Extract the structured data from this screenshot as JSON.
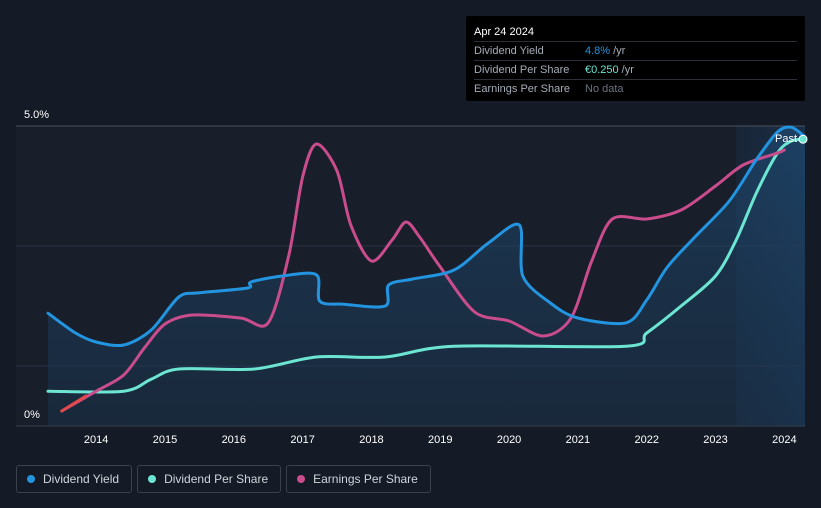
{
  "tooltip": {
    "date": "Apr 24 2024",
    "rows": [
      {
        "label": "Dividend Yield",
        "value": "4.8%",
        "unit": "/yr",
        "color": "#2394df"
      },
      {
        "label": "Dividend Per Share",
        "value": "€0.250",
        "unit": "/yr",
        "color": "#6ce5d2"
      },
      {
        "label": "Earnings Per Share",
        "value": "No data",
        "unit": "",
        "color": "#6b7380"
      }
    ]
  },
  "legend": [
    {
      "label": "Dividend Yield",
      "color": "#2394df"
    },
    {
      "label": "Dividend Per Share",
      "color": "#6ce5d2"
    },
    {
      "label": "Earnings Per Share",
      "color": "#c94c8d"
    }
  ],
  "chart_data": {
    "type": "line",
    "y_axis_labels": [
      "5.0%",
      "0%"
    ],
    "ylim": [
      0,
      5.0
    ],
    "xlim": [
      2013.3,
      2024.3
    ],
    "x_ticks": [
      "2014",
      "2015",
      "2016",
      "2017",
      "2018",
      "2019",
      "2020",
      "2021",
      "2022",
      "2023",
      "2024"
    ],
    "grid": true,
    "past_label": "Past",
    "forecast_start": 2023.3,
    "series": [
      {
        "name": "Dividend Yield",
        "color": "#2394df",
        "points": [
          [
            2013.3,
            1.88
          ],
          [
            2013.7,
            1.55
          ],
          [
            2014.0,
            1.4
          ],
          [
            2014.4,
            1.35
          ],
          [
            2014.8,
            1.6
          ],
          [
            2015.2,
            2.15
          ],
          [
            2015.5,
            2.22
          ],
          [
            2016.2,
            2.3
          ],
          [
            2016.25,
            2.4
          ],
          [
            2016.7,
            2.5
          ],
          [
            2017.2,
            2.52
          ],
          [
            2017.25,
            2.08
          ],
          [
            2017.6,
            2.03
          ],
          [
            2018.2,
            2.0
          ],
          [
            2018.25,
            2.35
          ],
          [
            2018.6,
            2.45
          ],
          [
            2019.2,
            2.6
          ],
          [
            2019.7,
            3.05
          ],
          [
            2020.15,
            3.35
          ],
          [
            2020.2,
            2.5
          ],
          [
            2020.6,
            2.05
          ],
          [
            2021.0,
            1.8
          ],
          [
            2021.7,
            1.72
          ],
          [
            2022.0,
            2.1
          ],
          [
            2022.3,
            2.65
          ],
          [
            2022.7,
            3.15
          ],
          [
            2023.2,
            3.75
          ],
          [
            2023.6,
            4.45
          ],
          [
            2023.9,
            4.9
          ],
          [
            2024.1,
            4.98
          ],
          [
            2024.3,
            4.82
          ]
        ]
      },
      {
        "name": "Dividend Per Share",
        "color": "#6ce5d2",
        "points": [
          [
            2013.3,
            0.58
          ],
          [
            2014.4,
            0.58
          ],
          [
            2014.8,
            0.78
          ],
          [
            2015.2,
            0.95
          ],
          [
            2016.3,
            0.95
          ],
          [
            2017.2,
            1.15
          ],
          [
            2018.2,
            1.15
          ],
          [
            2019.2,
            1.33
          ],
          [
            2021.7,
            1.33
          ],
          [
            2022.0,
            1.55
          ],
          [
            2022.5,
            2.0
          ],
          [
            2023.0,
            2.5
          ],
          [
            2023.3,
            3.1
          ],
          [
            2023.6,
            3.9
          ],
          [
            2023.9,
            4.55
          ],
          [
            2024.1,
            4.75
          ],
          [
            2024.3,
            4.78
          ]
        ]
      },
      {
        "name": "Earnings Per Share",
        "color": "#c94c8d",
        "points": [
          [
            2013.5,
            0.25
          ],
          [
            2014.0,
            0.58
          ],
          [
            2014.4,
            0.85
          ],
          [
            2014.7,
            1.3
          ],
          [
            2015.0,
            1.7
          ],
          [
            2015.4,
            1.85
          ],
          [
            2016.1,
            1.8
          ],
          [
            2016.5,
            1.72
          ],
          [
            2016.8,
            2.85
          ],
          [
            2017.0,
            4.15
          ],
          [
            2017.2,
            4.7
          ],
          [
            2017.5,
            4.25
          ],
          [
            2017.7,
            3.35
          ],
          [
            2018.0,
            2.75
          ],
          [
            2018.3,
            3.1
          ],
          [
            2018.5,
            3.4
          ],
          [
            2018.7,
            3.15
          ],
          [
            2019.0,
            2.65
          ],
          [
            2019.5,
            1.9
          ],
          [
            2020.0,
            1.75
          ],
          [
            2020.5,
            1.5
          ],
          [
            2020.9,
            1.8
          ],
          [
            2021.2,
            2.75
          ],
          [
            2021.5,
            3.45
          ],
          [
            2022.0,
            3.45
          ],
          [
            2022.5,
            3.6
          ],
          [
            2023.0,
            4.0
          ],
          [
            2023.4,
            4.35
          ],
          [
            2023.9,
            4.55
          ],
          [
            2024.0,
            4.6
          ]
        ]
      }
    ]
  }
}
